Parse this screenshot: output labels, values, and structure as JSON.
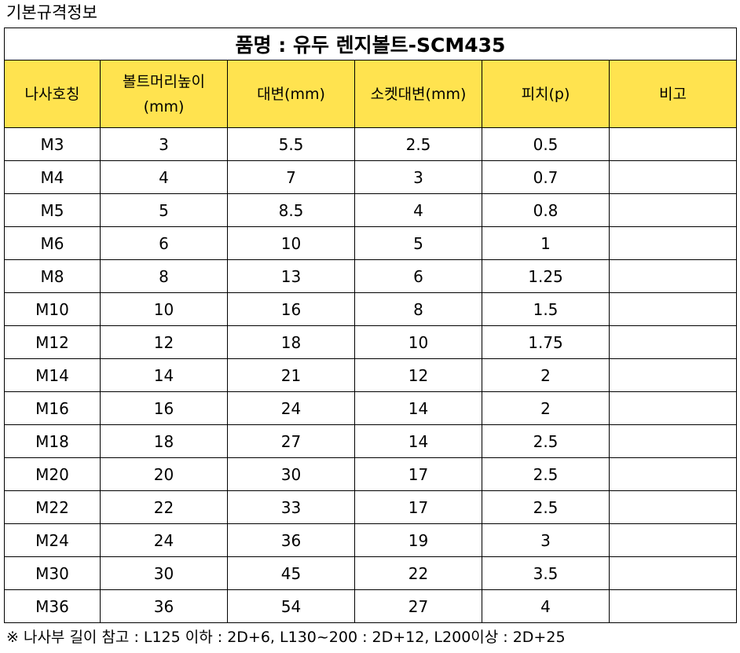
{
  "heading": "기본규격정보",
  "table": {
    "title": "품명 : 유두 렌지볼트-SCM435",
    "headers": [
      {
        "line1": "나사호칭",
        "line2": ""
      },
      {
        "line1": "볼트머리높이",
        "line2": "(mm)"
      },
      {
        "line1": "대변(mm)",
        "line2": ""
      },
      {
        "line1": "소켓대변(mm)",
        "line2": ""
      },
      {
        "line1": "피치(p)",
        "line2": ""
      },
      {
        "line1": "비고",
        "line2": ""
      }
    ],
    "rows": [
      [
        "M3",
        "3",
        "5.5",
        "2.5",
        "0.5",
        ""
      ],
      [
        "M4",
        "4",
        "7",
        "3",
        "0.7",
        ""
      ],
      [
        "M5",
        "5",
        "8.5",
        "4",
        "0.8",
        ""
      ],
      [
        "M6",
        "6",
        "10",
        "5",
        "1",
        ""
      ],
      [
        "M8",
        "8",
        "13",
        "6",
        "1.25",
        ""
      ],
      [
        "M10",
        "10",
        "16",
        "8",
        "1.5",
        ""
      ],
      [
        "M12",
        "12",
        "18",
        "10",
        "1.75",
        ""
      ],
      [
        "M14",
        "14",
        "21",
        "12",
        "2",
        ""
      ],
      [
        "M16",
        "16",
        "24",
        "14",
        "2",
        ""
      ],
      [
        "M18",
        "18",
        "27",
        "14",
        "2.5",
        ""
      ],
      [
        "M20",
        "20",
        "30",
        "17",
        "2.5",
        ""
      ],
      [
        "M22",
        "22",
        "33",
        "17",
        "2.5",
        ""
      ],
      [
        "M24",
        "24",
        "36",
        "19",
        "3",
        ""
      ],
      [
        "M30",
        "30",
        "45",
        "22",
        "3.5",
        ""
      ],
      [
        "M36",
        "36",
        "54",
        "27",
        "4",
        ""
      ]
    ]
  },
  "footnote": "※ 나사부 길이 참고 : L125 이하 : 2D+6, L130~200 : 2D+12, L200이상 : 2D+25",
  "colors": {
    "header_fill": "#ffe34f",
    "border": "#000000"
  }
}
